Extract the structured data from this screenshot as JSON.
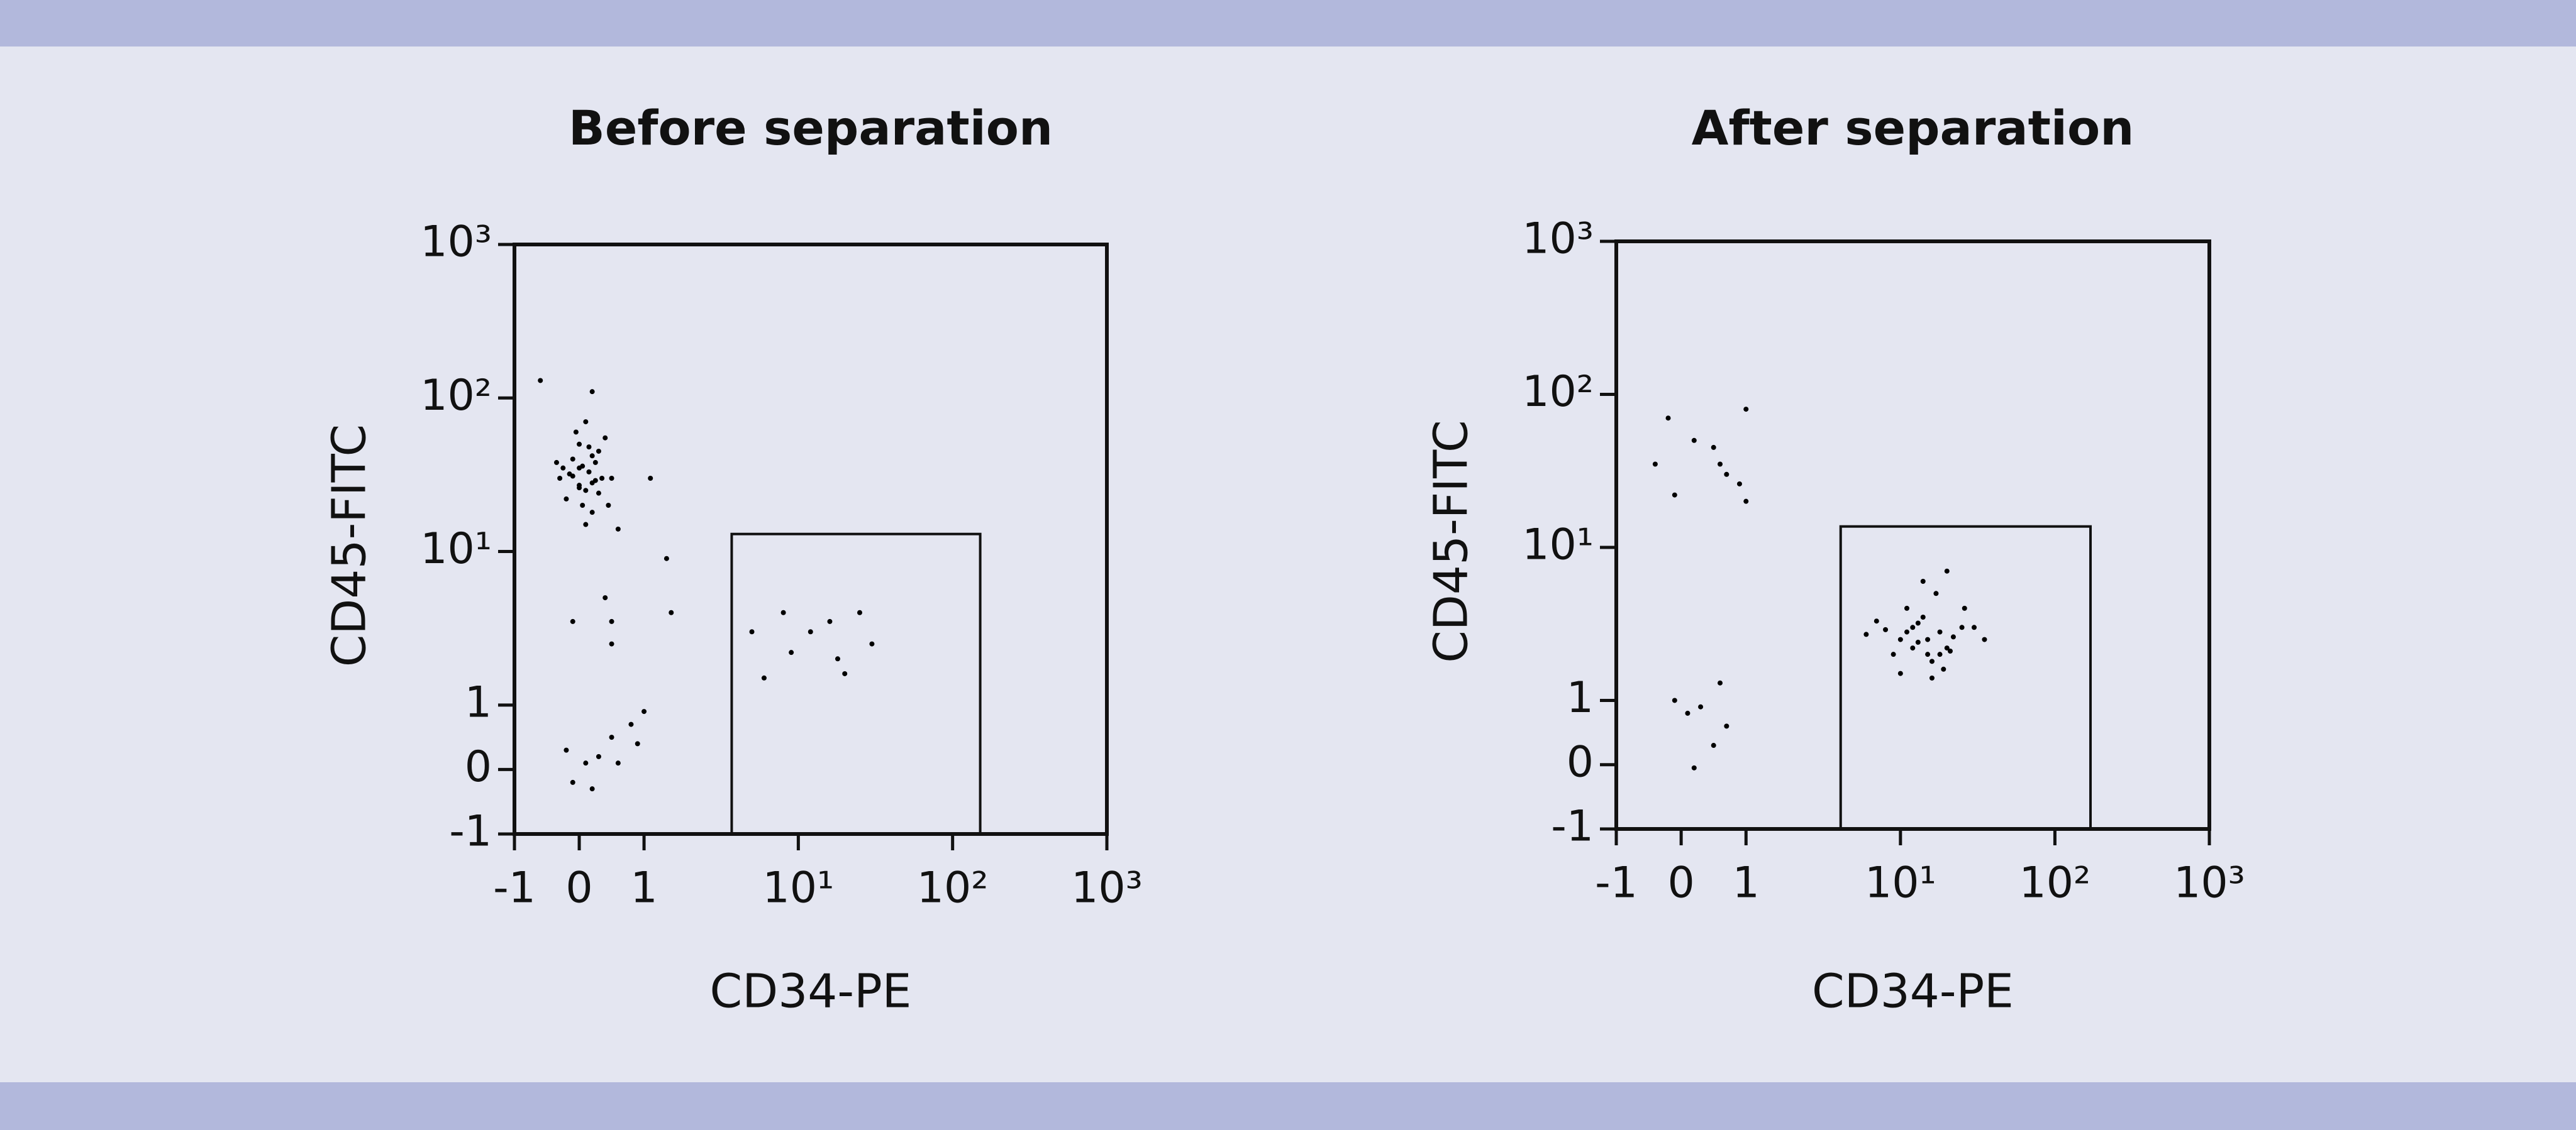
{
  "chart_data": [
    {
      "type": "scatter",
      "title": "Before separation",
      "x_label": "CD34-PE",
      "y_label": "CD45-FITC",
      "color": "#000000",
      "xlim": [
        -1,
        1000
      ],
      "ylim": [
        -1,
        1000
      ],
      "xticks": [
        -1,
        0,
        1,
        {
          "value": 10,
          "label": "10¹"
        },
        {
          "value": 100,
          "label": "10²"
        },
        {
          "value": 1000,
          "label": "10³"
        }
      ],
      "yticks": [
        -1,
        0,
        1,
        {
          "value": 10,
          "label": "10¹"
        },
        {
          "value": 100,
          "label": "10²"
        },
        {
          "value": 1000,
          "label": "10³"
        }
      ],
      "gate": {
        "x": [
          3.7,
          151
        ],
        "y": [
          -1,
          13
        ]
      },
      "x": [
        -0.3,
        -0.1,
        0,
        0.1,
        0.2,
        0.3,
        -0.2,
        0,
        0.15,
        0.25,
        -0.05,
        0.05,
        0.35,
        -0.25,
        0.1,
        0.2,
        0,
        -0.15,
        0.3,
        0.4,
        0.05,
        -0.1,
        0.2,
        0.1,
        0,
        0.5,
        -0.35,
        0.15,
        0.25,
        0.45,
        -0.6,
        0.2,
        1.1,
        0.6,
        0.4,
        0.5,
        1.4,
        1.5,
        -0.1,
        0.5,
        -0.2,
        0.1,
        0.3,
        0.5,
        0.8,
        1.0,
        -0.1,
        0.2,
        0.6,
        0.9,
        5,
        8,
        9,
        12,
        16,
        20,
        25,
        18,
        6,
        30
      ],
      "y": [
        30,
        40,
        35,
        25,
        28,
        45,
        22,
        50,
        33,
        38,
        60,
        20,
        30,
        35,
        70,
        42,
        27,
        32,
        24,
        55,
        36,
        31,
        18,
        15,
        26,
        30,
        38,
        48,
        29,
        20,
        130,
        110,
        30,
        14,
        5,
        3.5,
        9,
        4,
        3.5,
        2.5,
        0.3,
        0.1,
        0.2,
        0.5,
        0.7,
        0.9,
        -0.2,
        -0.3,
        0.1,
        0.4,
        3,
        4,
        2.2,
        3,
        3.5,
        1.6,
        4,
        2,
        1.5,
        2.5
      ]
    },
    {
      "type": "scatter",
      "title": "After separation",
      "x_label": "CD34-PE",
      "y_label": "CD45-FITC",
      "color": "#000000",
      "xlim": [
        -1,
        1000
      ],
      "ylim": [
        -1,
        1000
      ],
      "xticks": [
        -1,
        0,
        1,
        {
          "value": 10,
          "label": "10¹"
        },
        {
          "value": 100,
          "label": "10²"
        },
        {
          "value": 1000,
          "label": "10³"
        }
      ],
      "yticks": [
        -1,
        0,
        1,
        {
          "value": 10,
          "label": "10¹"
        },
        {
          "value": 100,
          "label": "10²"
        },
        {
          "value": 1000,
          "label": "10³"
        }
      ],
      "gate": {
        "x": [
          4.1,
          170
        ],
        "y": [
          -1,
          13.7
        ]
      },
      "x": [
        -0.2,
        0.2,
        1,
        0.5,
        0.7,
        0.9,
        -0.1,
        0.6,
        -0.4,
        1.0,
        -0.1,
        0.1,
        0.6,
        0.7,
        0.3,
        0.2,
        0.5,
        10,
        12,
        15,
        18,
        20,
        14,
        9,
        11,
        16,
        22,
        25,
        13,
        8,
        17,
        19,
        12,
        30,
        7,
        14,
        21,
        16,
        11,
        15,
        26,
        10,
        13,
        18,
        35,
        6,
        20
      ],
      "y": [
        70,
        50,
        80,
        45,
        30,
        26,
        22,
        35,
        35,
        20,
        1,
        0.8,
        1.3,
        0.6,
        0.9,
        -0.05,
        0.3,
        2.5,
        3,
        2,
        2.8,
        2.2,
        3.5,
        2,
        4,
        1.8,
        2.6,
        3,
        2.4,
        2.9,
        5,
        1.6,
        2.2,
        3,
        3.3,
        6,
        2.1,
        1.4,
        2.8,
        2.5,
        4,
        1.5,
        3.2,
        2,
        2.5,
        2.7,
        7
      ]
    }
  ]
}
